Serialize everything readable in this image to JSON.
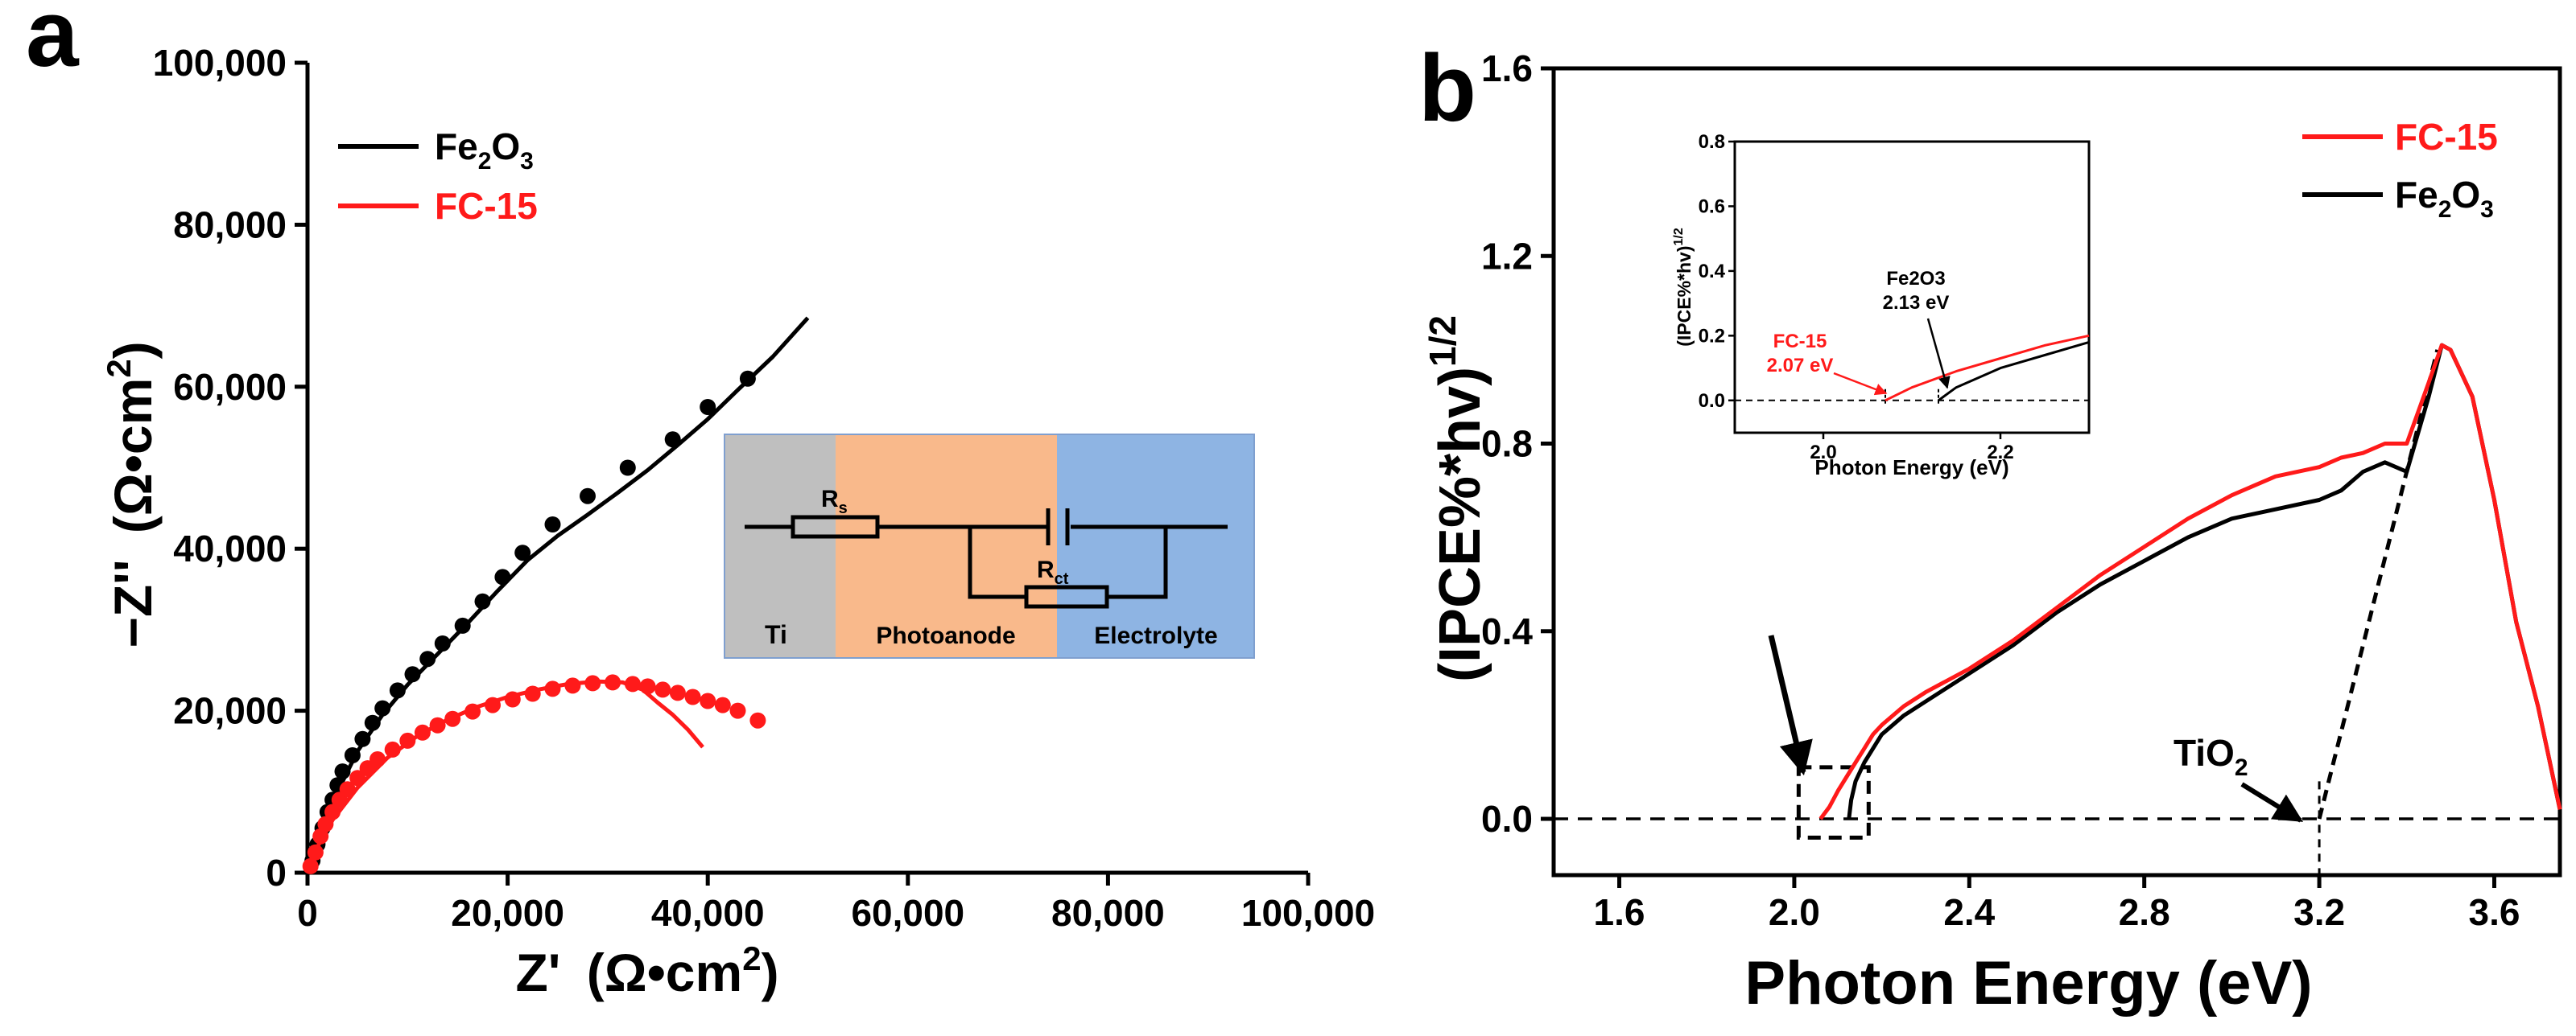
{
  "colors": {
    "fe2o3": "#000000",
    "fc15": "#ff1a1a",
    "ti_bg": "#bfbfbf",
    "photoanode_bg": "#f9b98b",
    "electrolyte_bg": "#8eb4e3",
    "box_border": "#7f9fcf"
  },
  "panel_a": {
    "label": "a",
    "xlabel_main": "Z'",
    "xlabel_unit": "(Ω•cm",
    "xlabel_sup": "2",
    "xlabel_close": ")",
    "ylabel_main": "−Z''",
    "ylabel_unit": "(Ω•cm",
    "ylabel_sup": "2",
    "ylabel_close": ")",
    "legend": {
      "fe2o3": {
        "base": "Fe",
        "sub1": "2",
        "mid": "O",
        "sub2": "3"
      },
      "fc15": "FC-15"
    },
    "circuit": {
      "rs_base": "R",
      "rs_sub": "s",
      "rct_base": "R",
      "rct_sub": "ct",
      "region_ti": "Ti",
      "region_photoanode": "Photoanode",
      "region_electrolyte": "Electrolyte"
    }
  },
  "panel_b": {
    "label": "b",
    "xlabel": "Photon Energy (eV)",
    "ylabel": "(IPCE%*hv)",
    "ylabel_sup": "1/2",
    "legend": {
      "fc15": "FC-15",
      "fe2o3": {
        "base": "Fe",
        "sub1": "2",
        "mid": "O",
        "sub2": "3"
      }
    },
    "tio2_annotation": {
      "base": "TiO",
      "sub": "2"
    },
    "inset": {
      "xlabel": "Photon Energy (eV)",
      "ylabel": "(IPCE%*hv)",
      "ylabel_sup": "1/2",
      "fe2o3_name": "Fe2O3",
      "fe2o3_value": "2.13 eV",
      "fc15_name": "FC-15",
      "fc15_value": "2.07 eV"
    }
  },
  "chart_data": [
    {
      "type": "scatter",
      "id": "panel_a",
      "title": "",
      "xlabel": "Z' (Ω•cm2)",
      "ylabel": "−Z'' (Ω•cm2)",
      "xlim": [
        0,
        100000
      ],
      "ylim": [
        0,
        100000
      ],
      "xticks": [
        0,
        20000,
        40000,
        60000,
        80000,
        100000
      ],
      "yticks": [
        0,
        20000,
        40000,
        60000,
        80000,
        100000
      ],
      "xtick_labels": [
        "0",
        "20,000",
        "40,000",
        "60,000",
        "80,000",
        "100,000"
      ],
      "ytick_labels": [
        "0",
        "20,000",
        "40,000",
        "60,000",
        "80,000",
        "100,000"
      ],
      "legend_position": "top-left",
      "series": [
        {
          "name": "Fe2O3",
          "color": "#000000",
          "points": [
            [
              500,
              1500
            ],
            [
              1000,
              3500
            ],
            [
              1500,
              5500
            ],
            [
              2000,
              7500
            ],
            [
              2500,
              9000
            ],
            [
              3000,
              10800
            ],
            [
              3500,
              12500
            ],
            [
              4500,
              14500
            ],
            [
              5500,
              16500
            ],
            [
              6500,
              18500
            ],
            [
              7500,
              20300
            ],
            [
              9000,
              22500
            ],
            [
              10500,
              24500
            ],
            [
              12000,
              26400
            ],
            [
              13500,
              28300
            ],
            [
              15500,
              30500
            ],
            [
              17500,
              33500
            ],
            [
              19500,
              36500
            ],
            [
              21500,
              39500
            ],
            [
              24500,
              43000
            ],
            [
              28000,
              46500
            ],
            [
              32000,
              50000
            ],
            [
              36500,
              53500
            ],
            [
              40000,
              57500
            ],
            [
              44000,
              61000
            ]
          ],
          "fit": [
            [
              0,
              0
            ],
            [
              500,
              2000
            ],
            [
              1500,
              5500
            ],
            [
              3000,
              10000
            ],
            [
              5000,
              15000
            ],
            [
              7500,
              19500
            ],
            [
              10000,
              23200
            ],
            [
              13000,
              27000
            ],
            [
              16000,
              30800
            ],
            [
              19000,
              34800
            ],
            [
              22000,
              38600
            ],
            [
              25000,
              41600
            ],
            [
              28000,
              44200
            ],
            [
              31000,
              46900
            ],
            [
              34000,
              49700
            ],
            [
              37000,
              52800
            ],
            [
              40000,
              56000
            ],
            [
              43000,
              59600
            ],
            [
              46500,
              63700
            ],
            [
              50000,
              68500
            ]
          ]
        },
        {
          "name": "FC-15",
          "color": "#ff1a1a",
          "points": [
            [
              300,
              800
            ],
            [
              800,
              2500
            ],
            [
              1300,
              4500
            ],
            [
              1800,
              6000
            ],
            [
              2500,
              7500
            ],
            [
              3200,
              9000
            ],
            [
              4000,
              10300
            ],
            [
              5000,
              11700
            ],
            [
              6000,
              12900
            ],
            [
              7000,
              14000
            ],
            [
              8500,
              15200
            ],
            [
              10000,
              16300
            ],
            [
              11500,
              17300
            ],
            [
              13000,
              18200
            ],
            [
              14500,
              19000
            ],
            [
              16500,
              19900
            ],
            [
              18500,
              20700
            ],
            [
              20500,
              21400
            ],
            [
              22500,
              22100
            ],
            [
              24500,
              22700
            ],
            [
              26500,
              23100
            ],
            [
              28500,
              23400
            ],
            [
              30500,
              23500
            ],
            [
              32500,
              23300
            ],
            [
              34000,
              23000
            ],
            [
              35500,
              22600
            ],
            [
              37000,
              22200
            ],
            [
              38500,
              21700
            ],
            [
              40000,
              21200
            ],
            [
              41500,
              20700
            ],
            [
              43000,
              20000
            ],
            [
              45000,
              18800
            ]
          ],
          "fit": [
            [
              0,
              0
            ],
            [
              1000,
              3200
            ],
            [
              2500,
              6500
            ],
            [
              5000,
              10500
            ],
            [
              8000,
              14200
            ],
            [
              11000,
              16900
            ],
            [
              14000,
              18900
            ],
            [
              17000,
              20500
            ],
            [
              20000,
              21700
            ],
            [
              23000,
              22600
            ],
            [
              26000,
              23300
            ],
            [
              29000,
              23600
            ],
            [
              31500,
              23500
            ],
            [
              33500,
              22600
            ],
            [
              35000,
              21000
            ],
            [
              36500,
              19500
            ],
            [
              38000,
              17700
            ],
            [
              39500,
              15500
            ]
          ]
        }
      ]
    },
    {
      "type": "line",
      "id": "panel_b",
      "title": "",
      "xlabel": "Photon Energy (eV)",
      "ylabel": "(IPCE%*hv)1/2",
      "xlim": [
        1.45,
        3.75
      ],
      "ylim": [
        -0.12,
        1.6
      ],
      "xticks": [
        1.6,
        2.0,
        2.4,
        2.8,
        3.2,
        3.6
      ],
      "yticks": [
        0.0,
        0.4,
        0.8,
        1.2,
        1.6
      ],
      "xtick_labels": [
        "1.6",
        "2.0",
        "2.4",
        "2.8",
        "3.2",
        "3.6"
      ],
      "ytick_labels": [
        "0.0",
        "0.4",
        "0.8",
        "1.2",
        "1.6"
      ],
      "legend_position": "top-right",
      "series": [
        {
          "name": "FC-15",
          "color": "#ff1a1a",
          "x": [
            2.06,
            2.08,
            2.1,
            2.12,
            2.14,
            2.16,
            2.18,
            2.2,
            2.25,
            2.3,
            2.4,
            2.5,
            2.6,
            2.7,
            2.8,
            2.9,
            3.0,
            3.1,
            3.2,
            3.25,
            3.3,
            3.35,
            3.4,
            3.45,
            3.48,
            3.5,
            3.55,
            3.6,
            3.65,
            3.7,
            3.75
          ],
          "y": [
            0.0,
            0.025,
            0.06,
            0.09,
            0.12,
            0.15,
            0.18,
            0.2,
            0.24,
            0.27,
            0.32,
            0.38,
            0.45,
            0.52,
            0.58,
            0.64,
            0.69,
            0.73,
            0.75,
            0.77,
            0.78,
            0.8,
            0.8,
            0.93,
            1.01,
            1.0,
            0.9,
            0.68,
            0.42,
            0.24,
            0.02
          ]
        },
        {
          "name": "Fe2O3",
          "color": "#000000",
          "x": [
            2.125,
            2.13,
            2.14,
            2.16,
            2.18,
            2.2,
            2.25,
            2.3,
            2.4,
            2.5,
            2.6,
            2.7,
            2.8,
            2.9,
            3.0,
            3.1,
            3.2,
            3.25,
            3.3,
            3.35,
            3.4,
            3.45,
            3.48,
            3.5,
            3.55,
            3.6,
            3.65,
            3.7,
            3.75
          ],
          "y": [
            0.0,
            0.04,
            0.08,
            0.12,
            0.15,
            0.18,
            0.22,
            0.25,
            0.31,
            0.37,
            0.44,
            0.5,
            0.55,
            0.6,
            0.64,
            0.66,
            0.68,
            0.7,
            0.74,
            0.76,
            0.74,
            0.9,
            1.01,
            1.0,
            0.9,
            0.68,
            0.42,
            0.24,
            0.02
          ]
        }
      ],
      "annotations": {
        "baseline_y": 0.0,
        "tio2_tangent": [
          [
            3.2,
            0.0
          ],
          [
            3.47,
            1.0
          ]
        ],
        "dashed_box": [
          [
            2.01,
            -0.04
          ],
          [
            2.17,
            0.11
          ]
        ]
      },
      "inset": {
        "type": "line",
        "xlabel": "Photon Energy (eV)",
        "ylabel": "(IPCE%*hv)1/2",
        "xlim": [
          1.9,
          2.3
        ],
        "ylim": [
          -0.1,
          0.8
        ],
        "xticks": [
          2.0,
          2.2
        ],
        "yticks": [
          0.0,
          0.2,
          0.4,
          0.6,
          0.8
        ],
        "xtick_labels": [
          "2.0",
          "2.2"
        ],
        "ytick_labels": [
          "0.0",
          "0.2",
          "0.4",
          "0.6",
          "0.8"
        ],
        "series": [
          {
            "name": "FC-15",
            "color": "#ff1a1a",
            "x": [
              2.07,
              2.1,
              2.15,
              2.2,
              2.25,
              2.3
            ],
            "y": [
              0.0,
              0.04,
              0.09,
              0.13,
              0.17,
              0.2
            ]
          },
          {
            "name": "Fe2O3",
            "color": "#000000",
            "x": [
              2.13,
              2.15,
              2.2,
              2.25,
              2.3
            ],
            "y": [
              0.0,
              0.04,
              0.1,
              0.14,
              0.18
            ]
          }
        ],
        "onset_markers": [
          {
            "name": "FC-15",
            "x": 2.07,
            "value": "2.07 eV"
          },
          {
            "name": "Fe2O3",
            "x": 2.13,
            "value": "2.13 eV"
          }
        ]
      }
    }
  ]
}
